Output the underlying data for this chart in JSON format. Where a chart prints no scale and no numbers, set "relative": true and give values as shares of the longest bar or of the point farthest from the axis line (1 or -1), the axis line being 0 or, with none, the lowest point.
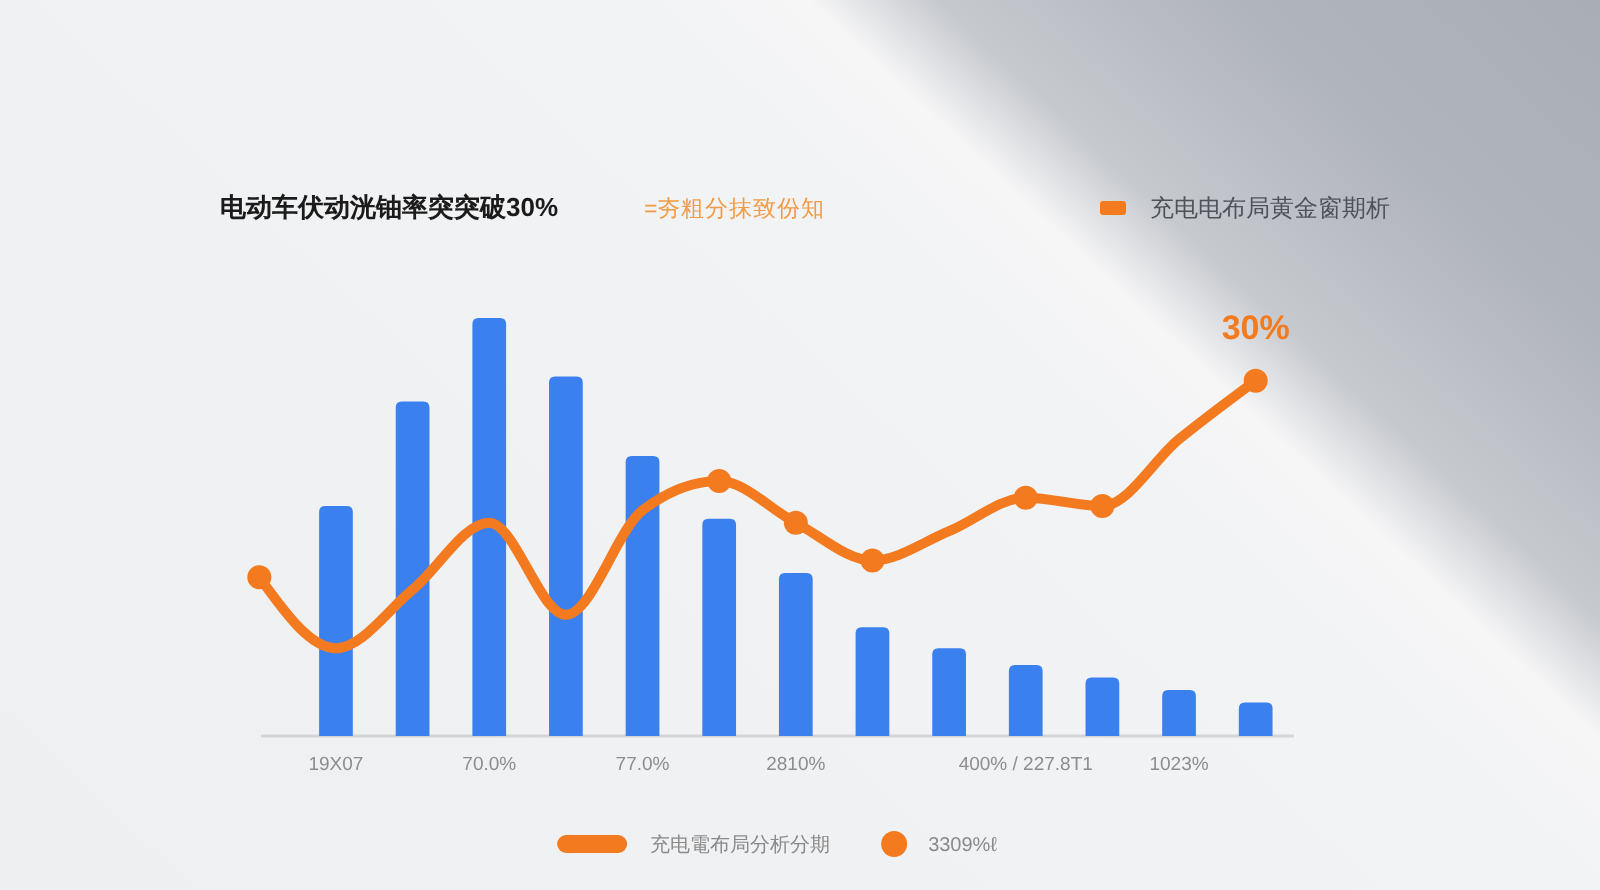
{
  "chart_data": {
    "type": "bar",
    "title": "电动车伏动洸铀率突突破30%",
    "subtitle": "=夯粗分抹致份知",
    "annotations": [
      "充电电布局黄金窗期析",
      {
        "text": "30%",
        "y": 0.85
      }
    ],
    "relative": true,
    "categories": [
      null,
      "19X07",
      null,
      "70.0%",
      null,
      "77.0%",
      null,
      "2810%",
      null,
      null,
      "400% / 227.8T1",
      null,
      "1023%",
      null
    ],
    "legend": "bottom",
    "series": [
      {
        "color": "#3b80ef",
        "values": [
          null,
          0.55,
          0.8,
          1,
          0.86,
          0.67,
          0.52,
          0.39,
          0.26,
          0.21,
          0.17,
          0.14,
          0.11,
          0.08
        ]
      },
      {
        "type": "line",
        "name": "充电電布局分析分期",
        "color": "#f47a1f",
        "values": [
          0.38,
          0.21,
          0.35,
          0.51,
          0.29,
          0.54,
          0.61,
          0.51,
          0.42,
          0.49,
          0.57,
          0.55,
          0.71,
          0.85
        ]
      },
      {
        "type": "scatter",
        "name": "3309%ℓ",
        "color": "#f47a1f",
        "marker": "circle",
        "values": [
          0.38,
          null,
          null,
          null,
          null,
          null,
          0.61,
          0.51,
          0.42,
          null,
          0.57,
          0.55,
          null,
          0.85
        ]
      }
    ]
  }
}
